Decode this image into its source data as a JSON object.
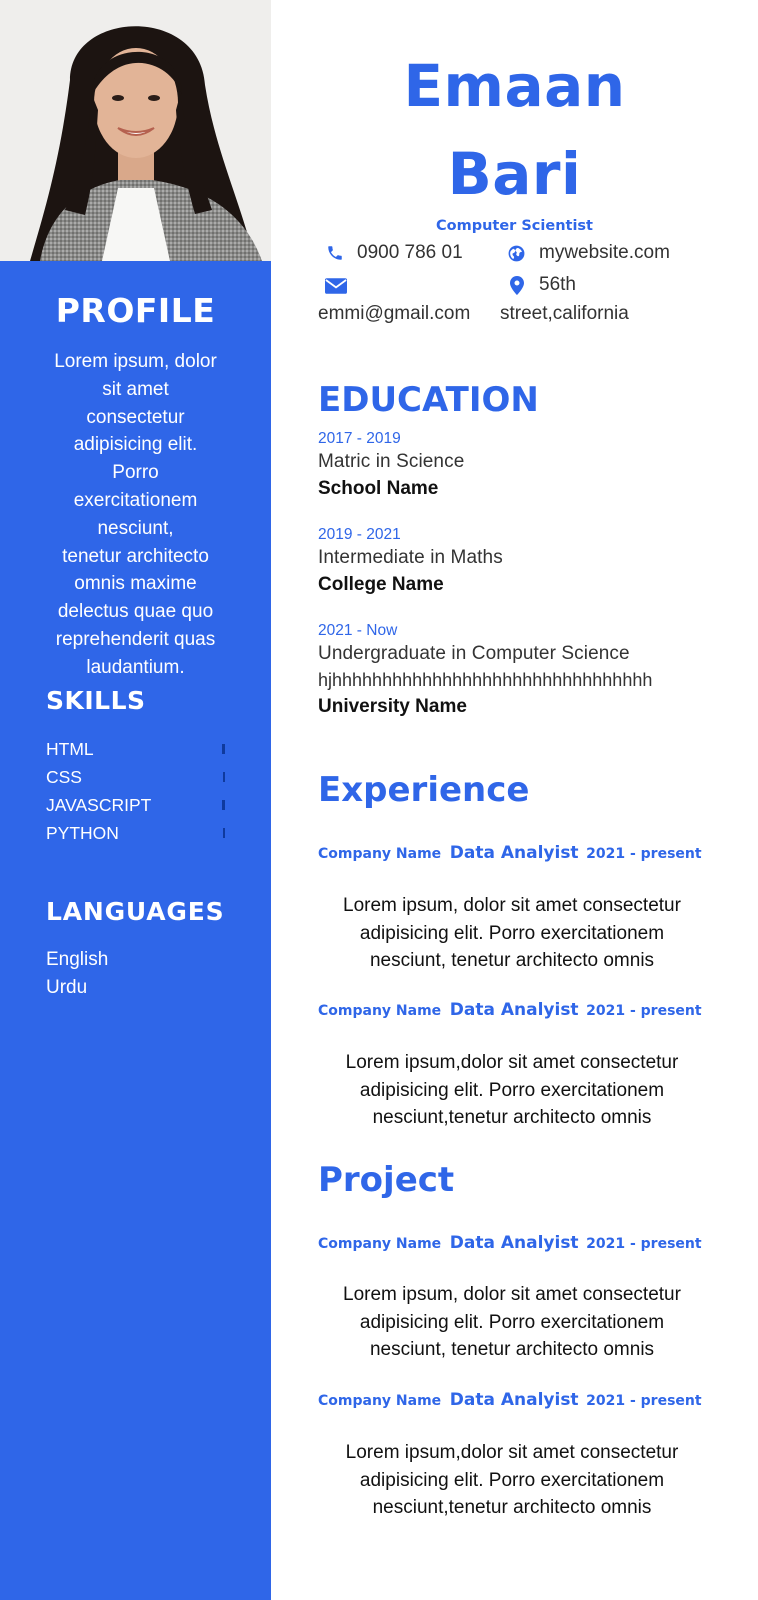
{
  "sidebar": {
    "profile_title": "PROFILE",
    "profile_lines": [
      "Lorem ipsum, dolor",
      "sit amet",
      "consectetur",
      "adipisicing elit.",
      "Porro",
      "exercitationem",
      "nesciunt,",
      "tenetur architecto",
      "omnis maxime",
      "delectus quae quo",
      "reprehenderit quas",
      "laudantium."
    ],
    "skills_title": "SKILLS",
    "skills": [
      "HTML",
      "CSS",
      "JAVASCRIPT",
      "PYTHON"
    ],
    "languages_title": "LANGUAGES",
    "languages": [
      "English",
      "Urdu"
    ]
  },
  "header": {
    "first_name": "Emaan",
    "last_name": "Bari",
    "role": "Computer Scientist"
  },
  "contact": {
    "phone": "0900 786 01",
    "website": "mywebsite.com",
    "email": "emmi@gmail.com",
    "address_line1": "56th",
    "address_line2": "street,california"
  },
  "education": {
    "title": "EDUCATION",
    "items": [
      {
        "date": "2017 - 2019",
        "degree": "Matric in Science",
        "school": "School Name"
      },
      {
        "date": "2019 - 2021",
        "degree": "Intermediate in Maths",
        "school": "College Name"
      },
      {
        "date": "2021 - Now",
        "degree": "Undergraduate in Computer Science",
        "degree_extra": "hjhhhhhhhhhhhhhhhhhhhhhhhhhhhhhhhh",
        "school": "University Name"
      }
    ]
  },
  "experience": {
    "title": "Experience",
    "items": [
      {
        "company": "Company Name",
        "role": "Data Analyist",
        "date": "2021 - present",
        "lines": [
          "Lorem ipsum, dolor sit amet consectetur",
          "adipisicing elit. Porro exercitationem",
          "nesciunt, tenetur architecto omnis"
        ]
      },
      {
        "company": "Company Name",
        "role": "Data Analyist",
        "date": "2021 - present",
        "lines": [
          "Lorem ipsum,dolor sit amet consectetur",
          "adipisicing elit. Porro exercitationem",
          "nesciunt,tenetur architecto omnis"
        ]
      }
    ]
  },
  "project": {
    "title": "Project",
    "items": [
      {
        "company": "Company Name",
        "role": "Data Analyist",
        "date": "2021 - present",
        "lines": [
          "Lorem ipsum, dolor sit amet consectetur",
          "adipisicing elit. Porro exercitationem",
          "nesciunt, tenetur architecto omnis"
        ]
      },
      {
        "company": "Company Name",
        "role": "Data Analyist",
        "date": "2021 - present",
        "lines": [
          "Lorem ipsum,dolor sit amet consectetur",
          "adipisicing elit. Porro exercitationem",
          "nesciunt,tenetur architecto omnis"
        ]
      }
    ]
  },
  "colors": {
    "accent": "#2f66e8",
    "sidebar_bg": "#2f66e8",
    "skill_bar": "#0f3a9e"
  },
  "icons": {
    "phone": "phone-icon",
    "globe": "globe-icon",
    "email": "envelope-icon",
    "location": "map-pin-icon"
  }
}
